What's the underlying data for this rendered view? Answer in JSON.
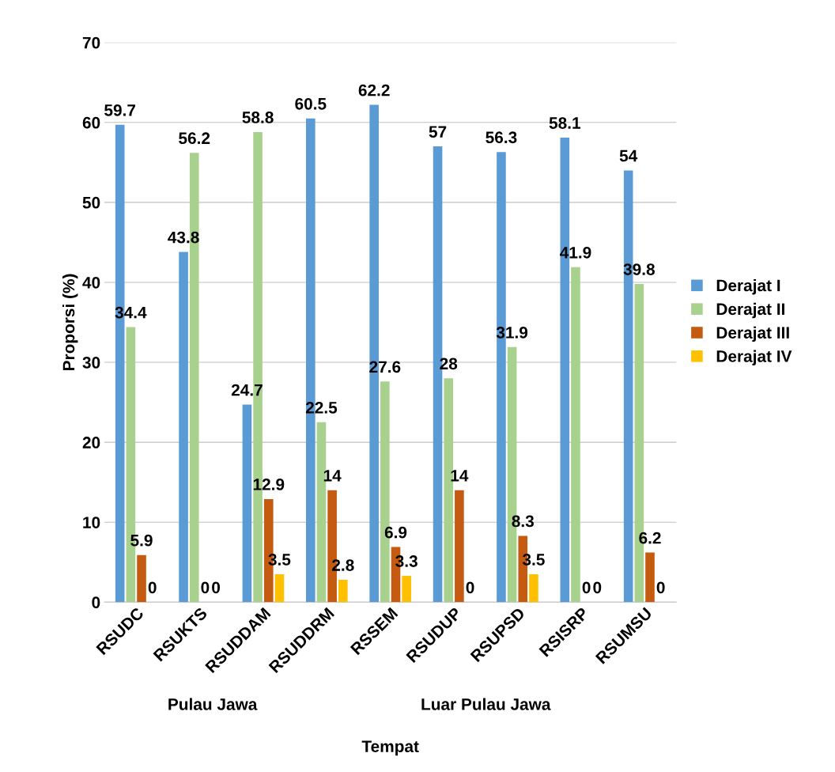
{
  "chart_data": {
    "type": "bar",
    "xlabel": "Tempat",
    "ylabel": "Proporsi (%)",
    "categories": [
      "RSUDC",
      "RSUKTS",
      "RSUDDAM",
      "RSUDDRM",
      "RSSEM",
      "RSUDUP",
      "RSUPSD",
      "RSISRP",
      "RSUMSU"
    ],
    "series": [
      {
        "name": "Derajat I",
        "color": "#5b9bd5",
        "values": [
          59.7,
          43.8,
          24.7,
          60.5,
          62.2,
          57,
          56.3,
          58.1,
          54
        ]
      },
      {
        "name": "Derajat II",
        "color": "#a9d18e",
        "values": [
          34.4,
          56.2,
          58.8,
          22.5,
          27.6,
          28,
          31.9,
          41.9,
          39.8
        ]
      },
      {
        "name": "Derajat III",
        "color": "#c55a11",
        "values": [
          5.9,
          0,
          12.9,
          14,
          6.9,
          14,
          8.3,
          0,
          6.2
        ]
      },
      {
        "name": "Derajat IV",
        "color": "#ffc000",
        "values": [
          0,
          0,
          3.5,
          2.8,
          3.3,
          0,
          3.5,
          0,
          0
        ]
      }
    ],
    "ylim": [
      0,
      70
    ],
    "yticks": [
      0,
      10,
      20,
      30,
      40,
      50,
      60,
      70
    ],
    "grid": "y",
    "legend": "right",
    "data_labels": true,
    "annotations": [
      "Pulau Jawa",
      "Luar Pulau Jawa"
    ]
  }
}
